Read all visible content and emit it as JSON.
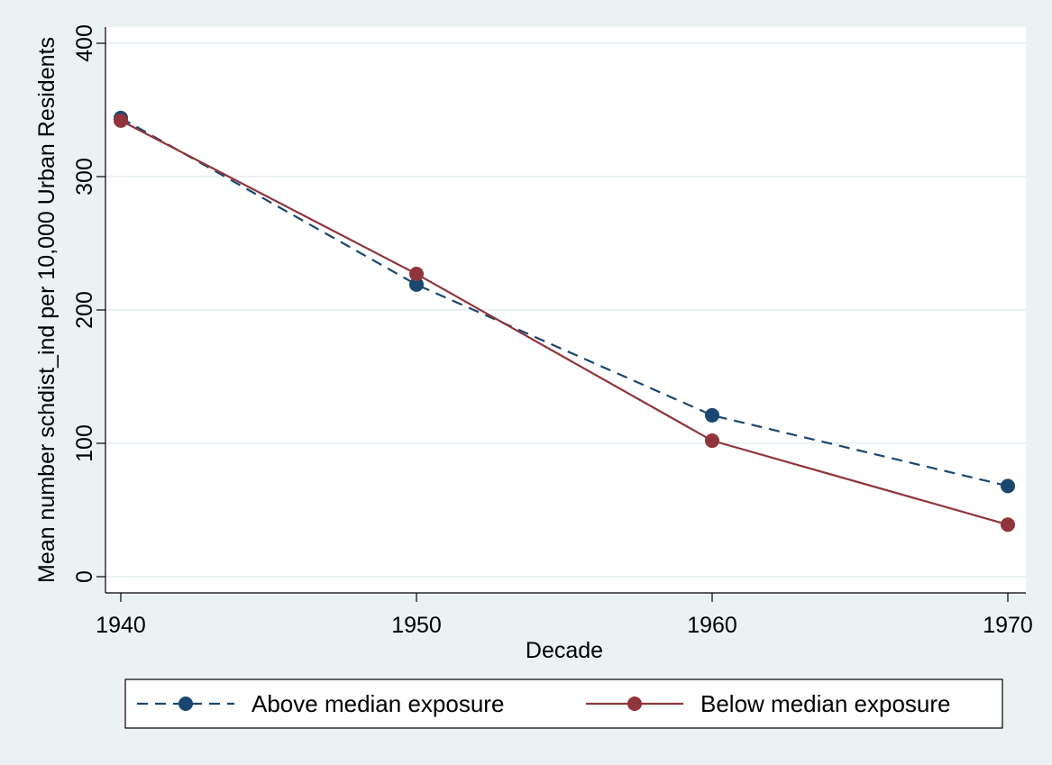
{
  "chart_data": {
    "type": "line",
    "xlabel": "Decade",
    "ylabel": "Mean number schdist_ind per 10,000 Urban Residents",
    "x": [
      1940,
      1950,
      1960,
      1970
    ],
    "xlim": [
      1940,
      1970
    ],
    "ylim": [
      0,
      400
    ],
    "xticks": [
      "1940",
      "1950",
      "1960",
      "1970"
    ],
    "yticks": [
      "0",
      "100",
      "200",
      "300",
      "400"
    ],
    "grid": true,
    "legend_position": "bottom",
    "series": [
      {
        "name": "Above median exposure",
        "values": [
          344,
          219,
          121,
          68
        ],
        "color": "#1a476f",
        "line_style": "dashed"
      },
      {
        "name": "Below median exposure",
        "values": [
          342,
          227,
          102,
          39
        ],
        "color": "#90353b",
        "line_style": "solid"
      }
    ]
  }
}
